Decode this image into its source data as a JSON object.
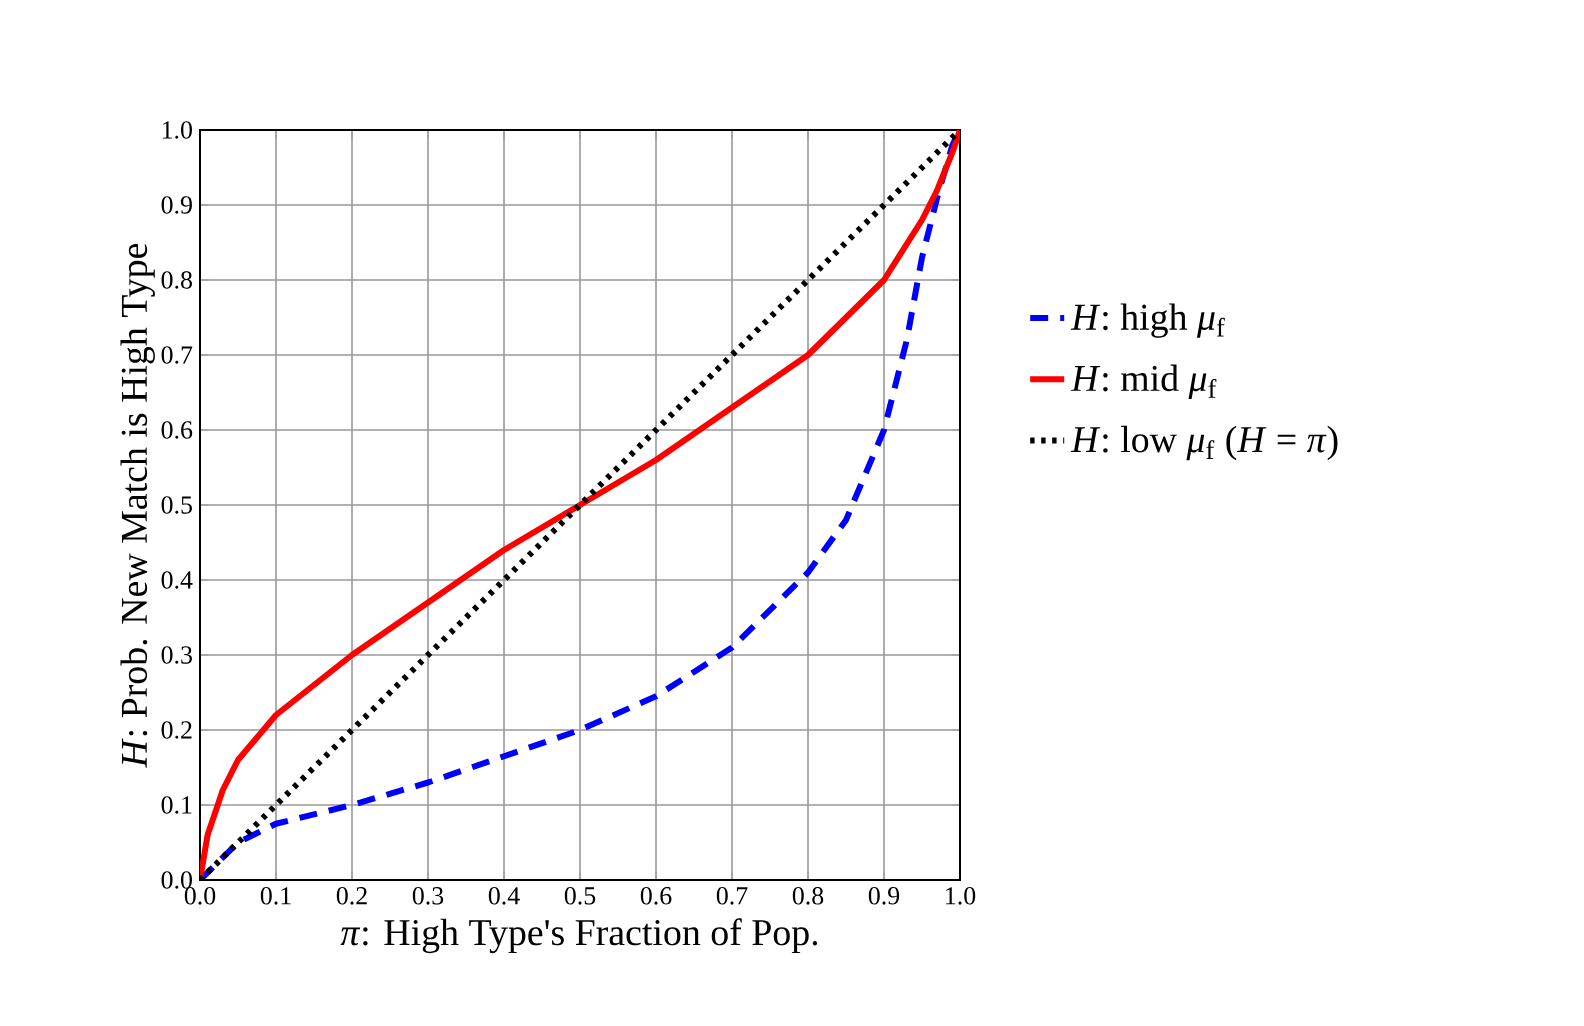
{
  "chart_data": {
    "type": "line",
    "xlabel": "*π*: High Type's Fraction of Pop.",
    "ylabel": "*H*: Prob. New Match is High Type",
    "xlim": [
      0,
      1
    ],
    "ylim": [
      0,
      1
    ],
    "xticks": [
      {
        "value": 0,
        "label": "0.0"
      },
      {
        "value": 0.1,
        "label": "0.1"
      },
      {
        "value": 0.2,
        "label": "0.2"
      },
      {
        "value": 0.3,
        "label": "0.3"
      },
      {
        "value": 0.4,
        "label": "0.4"
      },
      {
        "value": 0.5,
        "label": "0.5"
      },
      {
        "value": 0.6,
        "label": "0.6"
      },
      {
        "value": 0.7,
        "label": "0.7"
      },
      {
        "value": 0.8,
        "label": "0.8"
      },
      {
        "value": 0.9,
        "label": "0.9"
      },
      {
        "value": 1,
        "label": "1.0"
      }
    ],
    "yticks": [
      {
        "value": 0,
        "label": "0.0"
      },
      {
        "value": 0.1,
        "label": "0.1"
      },
      {
        "value": 0.2,
        "label": "0.2"
      },
      {
        "value": 0.3,
        "label": "0.3"
      },
      {
        "value": 0.4,
        "label": "0.4"
      },
      {
        "value": 0.5,
        "label": "0.5"
      },
      {
        "value": 0.6,
        "label": "0.6"
      },
      {
        "value": 0.7,
        "label": "0.7"
      },
      {
        "value": 0.8,
        "label": "0.8"
      },
      {
        "value": 0.9,
        "label": "0.9"
      },
      {
        "value": 1,
        "label": "1.0"
      }
    ],
    "grid": true,
    "legend": "right",
    "series": [
      {
        "name": "*H*: high *μ*$_{f}$",
        "color": "#0000ff",
        "line_style": "dashed",
        "x": [
          0,
          0.05,
          0.1,
          0.2,
          0.3,
          0.4,
          0.5,
          0.6,
          0.7,
          0.8,
          0.85,
          0.9,
          0.93,
          0.95,
          0.97,
          0.99,
          1
        ],
        "values": [
          0,
          0.05,
          0.075,
          0.1,
          0.13,
          0.165,
          0.2,
          0.245,
          0.31,
          0.41,
          0.48,
          0.6,
          0.72,
          0.83,
          0.91,
          0.98,
          1
        ]
      },
      {
        "name": "*H*: mid *μ*$_{f}$",
        "color": "#ff0000",
        "line_style": "solid",
        "x": [
          0,
          0.01,
          0.03,
          0.05,
          0.1,
          0.2,
          0.3,
          0.4,
          0.5,
          0.6,
          0.7,
          0.8,
          0.9,
          0.95,
          0.97,
          0.99,
          1
        ],
        "values": [
          0,
          0.06,
          0.12,
          0.16,
          0.22,
          0.3,
          0.37,
          0.44,
          0.5,
          0.56,
          0.63,
          0.7,
          0.8,
          0.88,
          0.92,
          0.97,
          1
        ]
      },
      {
        "name": "*H*: low *μ*$_{f}$ (*H* = *π*)",
        "color": "#000000",
        "line_style": "dotted",
        "x": [
          0,
          1
        ],
        "values": [
          0,
          1
        ]
      }
    ]
  }
}
